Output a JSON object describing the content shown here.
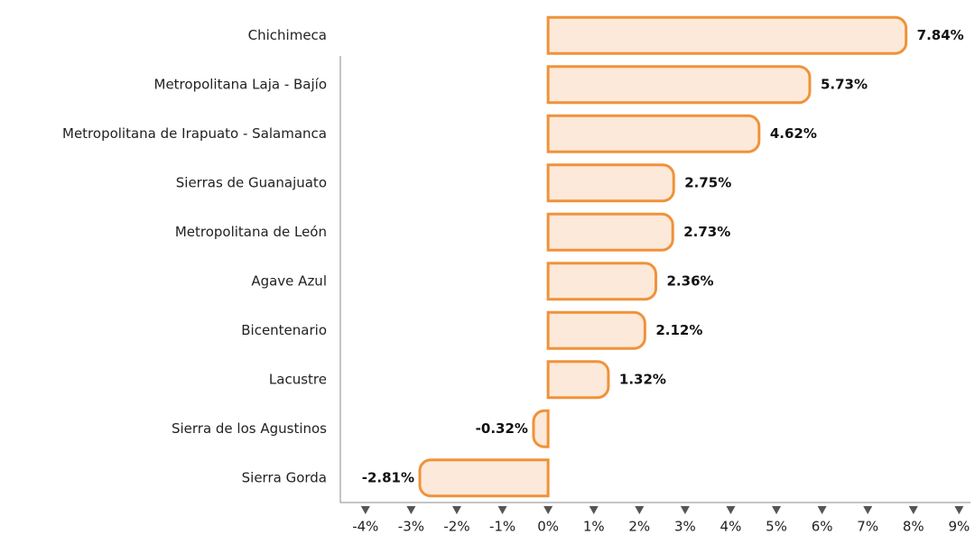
{
  "chart_data": {
    "type": "bar",
    "orientation": "horizontal",
    "categories": [
      "Chichimeca",
      "Metropolitana Laja - Bajío",
      "Metropolitana de Irapuato - Salamanca",
      "Sierras de Guanajuato",
      "Metropolitana de León",
      "Agave Azul",
      "Bicentenario",
      "Lacustre",
      "Sierra de los Agustinos",
      "Sierra Gorda"
    ],
    "values": [
      7.84,
      5.73,
      4.62,
      2.75,
      2.73,
      2.36,
      2.12,
      1.32,
      -0.32,
      -2.81
    ],
    "value_labels": [
      "7.84%",
      "5.73%",
      "4.62%",
      "2.75%",
      "2.73%",
      "2.36%",
      "2.12%",
      "1.32%",
      "-0.32%",
      "-2.81%"
    ],
    "color": "#f0923a",
    "fill": "#fde9d9",
    "xlim": [
      -4.55,
      9.25
    ],
    "xticks": [
      {
        "value": -4,
        "label": "-4%"
      },
      {
        "value": -3,
        "label": "-3%"
      },
      {
        "value": -2,
        "label": "-2%"
      },
      {
        "value": -1,
        "label": "-1%"
      },
      {
        "value": 0,
        "label": "0%"
      },
      {
        "value": 1,
        "label": "1%"
      },
      {
        "value": 2,
        "label": "2%"
      },
      {
        "value": 3,
        "label": "3%"
      },
      {
        "value": 4,
        "label": "4%"
      },
      {
        "value": 5,
        "label": "5%"
      },
      {
        "value": 6,
        "label": "6%"
      },
      {
        "value": 7,
        "label": "7%"
      },
      {
        "value": 8,
        "label": "8%"
      },
      {
        "value": 9,
        "label": "9%"
      }
    ]
  }
}
